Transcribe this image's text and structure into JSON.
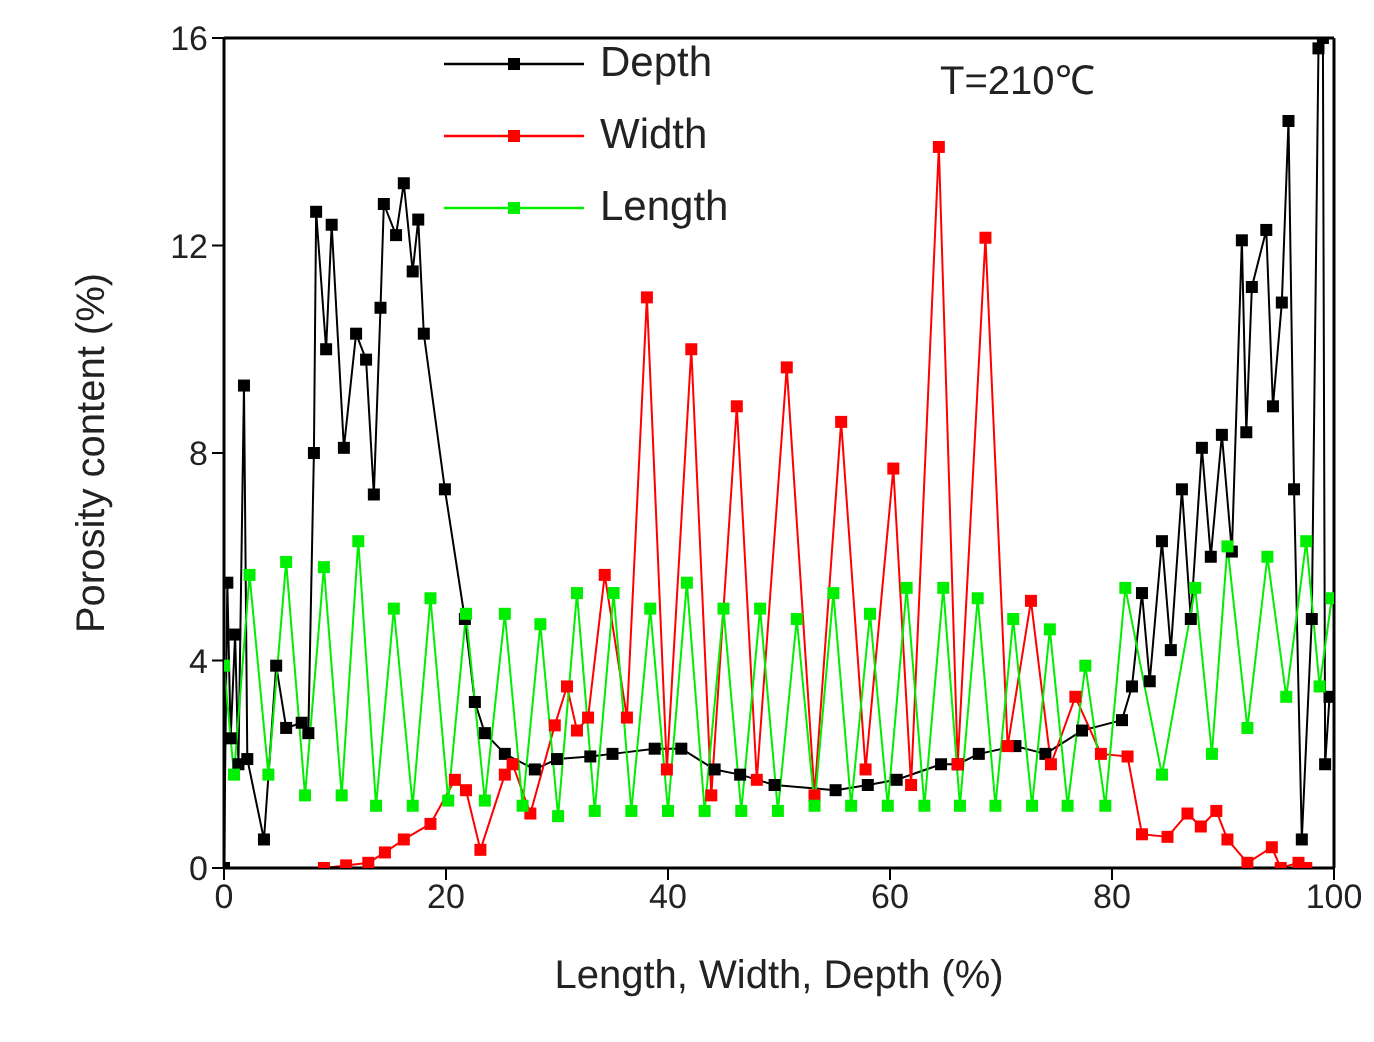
{
  "chart_data": {
    "type": "line",
    "xlabel": "Length, Width, Depth  (%)",
    "ylabel": "Porosity content (%)",
    "annotations": [
      "T=210℃"
    ],
    "xlim": [
      0,
      100
    ],
    "xticks": [
      0,
      20,
      40,
      60,
      80,
      100
    ],
    "ylim": [
      0,
      16
    ],
    "yticks": [
      0,
      4,
      8,
      12,
      16
    ],
    "legend": "top",
    "marker": "square",
    "grid": false,
    "series": [
      {
        "name": "Depth",
        "color": "#000000",
        "x": [
          0,
          0.3,
          0.6,
          1.0,
          1.3,
          1.8,
          2.1,
          3.6,
          4.7,
          5.6,
          7.0,
          7.6,
          8.1,
          8.3,
          9.2,
          9.7,
          10.8,
          11.9,
          12.8,
          13.5,
          14.1,
          14.4,
          15.5,
          16.2,
          17.0,
          17.5,
          18.0,
          19.9,
          21.7,
          22.6,
          23.5,
          25.3,
          28.0,
          30.0,
          33.0,
          35.0,
          38.8,
          41.2,
          44.2,
          46.5,
          49.6,
          55.1,
          58.0,
          60.6,
          64.6,
          66.1,
          68.0,
          71.3,
          74.0,
          77.3,
          80.9,
          81.8,
          82.7,
          83.4,
          84.5,
          85.3,
          86.3,
          87.1,
          88.1,
          88.9,
          89.9,
          90.8,
          91.7,
          92.1,
          92.6,
          93.9,
          94.5,
          95.3,
          95.9,
          96.4,
          97.1,
          98.0,
          98.6,
          99.0,
          99.2,
          99.6
        ],
        "values": [
          0,
          5.5,
          2.5,
          4.5,
          2.0,
          9.3,
          2.1,
          0.55,
          3.9,
          2.7,
          2.8,
          2.6,
          8.0,
          12.65,
          10.0,
          12.4,
          8.1,
          10.3,
          9.8,
          7.2,
          10.8,
          12.8,
          12.2,
          13.2,
          11.5,
          12.5,
          10.3,
          7.3,
          4.8,
          3.2,
          2.6,
          2.2,
          1.9,
          2.1,
          2.15,
          2.2,
          2.3,
          2.3,
          1.9,
          1.8,
          1.6,
          1.5,
          1.6,
          1.7,
          2.0,
          2.0,
          2.2,
          2.35,
          2.2,
          2.65,
          2.85,
          3.5,
          5.3,
          3.6,
          6.3,
          4.2,
          7.3,
          4.8,
          8.1,
          6.0,
          8.35,
          6.1,
          12.1,
          8.4,
          11.2,
          12.3,
          8.9,
          10.9,
          14.4,
          7.3,
          0.55,
          4.8,
          15.8,
          16,
          2.0,
          3.3
        ]
      },
      {
        "name": "Width",
        "color": "#ff0000",
        "x": [
          9.0,
          11.0,
          13.0,
          14.5,
          16.2,
          18.6,
          20.8,
          21.8,
          23.1,
          25.3,
          26.0,
          27.6,
          29.8,
          30.9,
          31.8,
          32.8,
          34.3,
          36.3,
          38.1,
          39.9,
          42.1,
          43.9,
          46.2,
          48.0,
          50.7,
          53.2,
          55.6,
          57.8,
          60.3,
          61.9,
          64.4,
          66.1,
          68.6,
          70.6,
          72.7,
          74.5,
          76.7,
          79.0,
          81.4,
          82.7,
          85.0,
          86.8,
          88.0,
          89.4,
          90.4,
          92.2,
          94.4,
          95.2,
          96.8,
          97.5
        ],
        "values": [
          0,
          0.05,
          0.1,
          0.3,
          0.55,
          0.85,
          1.7,
          1.5,
          0.35,
          1.8,
          2.0,
          1.05,
          2.75,
          3.5,
          2.65,
          2.9,
          5.65,
          2.9,
          11.0,
          1.9,
          10.0,
          1.4,
          8.9,
          1.7,
          9.65,
          1.4,
          8.6,
          1.9,
          7.7,
          1.6,
          13.9,
          2.0,
          12.15,
          2.35,
          5.15,
          2.0,
          3.3,
          2.2,
          2.15,
          0.65,
          0.6,
          1.05,
          0.8,
          1.1,
          0.55,
          0.1,
          0.4,
          0,
          0.1,
          0
        ]
      },
      {
        "name": "Length",
        "color": "#00ee00",
        "x": [
          0,
          0.9,
          2.3,
          4.0,
          5.6,
          7.3,
          9.0,
          10.6,
          12.1,
          13.7,
          15.3,
          17.0,
          18.6,
          20.2,
          21.8,
          23.5,
          25.3,
          26.9,
          28.5,
          30.1,
          31.8,
          33.4,
          35.1,
          36.7,
          38.4,
          40.0,
          41.7,
          43.3,
          45.0,
          46.6,
          48.3,
          49.9,
          51.6,
          53.2,
          54.9,
          56.5,
          58.2,
          59.8,
          61.5,
          63.1,
          64.8,
          66.3,
          67.9,
          69.5,
          71.1,
          72.8,
          74.4,
          76.0,
          77.6,
          79.4,
          81.2,
          84.5,
          87.5,
          89.0,
          90.4,
          92.2,
          94.0,
          95.7,
          97.5,
          98.7,
          99.8
        ],
        "values": [
          3.9,
          1.8,
          5.65,
          1.8,
          5.9,
          1.4,
          5.8,
          1.4,
          6.3,
          1.2,
          5.0,
          1.2,
          5.2,
          1.3,
          4.9,
          1.3,
          4.9,
          1.2,
          4.7,
          1.0,
          5.3,
          1.1,
          5.3,
          1.1,
          5.0,
          1.1,
          5.5,
          1.1,
          5.0,
          1.1,
          5.0,
          1.1,
          4.8,
          1.2,
          5.3,
          1.2,
          4.9,
          1.2,
          5.4,
          1.2,
          5.4,
          1.2,
          5.2,
          1.2,
          4.8,
          1.2,
          4.6,
          1.2,
          3.9,
          1.2,
          5.4,
          1.8,
          5.4,
          2.2,
          6.2,
          2.7,
          6.0,
          3.3,
          6.3,
          3.5,
          5.2
        ]
      }
    ]
  }
}
